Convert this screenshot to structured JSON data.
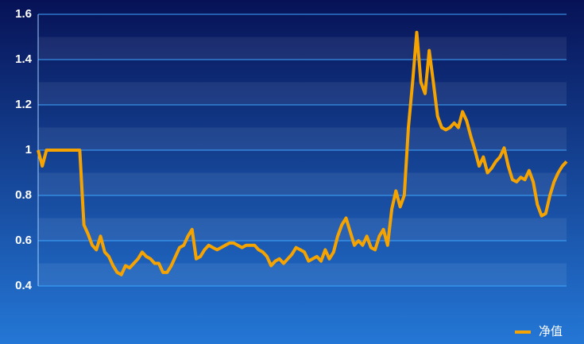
{
  "chart_data": {
    "type": "line",
    "categories": [
      null,
      null,
      null,
      null,
      null,
      null,
      null,
      null,
      null,
      null,
      null,
      null,
      null,
      null,
      null,
      null,
      null,
      null,
      null,
      null,
      null,
      null,
      null,
      null,
      null,
      null,
      null,
      null,
      null,
      null,
      null,
      null,
      null,
      null,
      null,
      null,
      null,
      null,
      null,
      null,
      null,
      null,
      null,
      null,
      null,
      null,
      null,
      null,
      null,
      null,
      null,
      null,
      null,
      null,
      null,
      null,
      null,
      null,
      null,
      null,
      null,
      null,
      null,
      null,
      null,
      null,
      null,
      null,
      null,
      null,
      null,
      null,
      null,
      null,
      null,
      null,
      null,
      null,
      null,
      null,
      null,
      null,
      null,
      null,
      null,
      null,
      null,
      null,
      null,
      null,
      null,
      null,
      null,
      null,
      null,
      null,
      null,
      null,
      null,
      null,
      null,
      null,
      null,
      null,
      null,
      null,
      null,
      null,
      null,
      null,
      null,
      null,
      null,
      null,
      null,
      null,
      null,
      null,
      null,
      null,
      null,
      null,
      null,
      null,
      null,
      null,
      null,
      null
    ],
    "series": [
      {
        "name": "净值",
        "color": "#f5a300",
        "values": [
          1.0,
          0.93,
          1.0,
          1.0,
          1.0,
          1.0,
          1.0,
          1.0,
          1.0,
          1.0,
          1.0,
          0.67,
          0.63,
          0.58,
          0.56,
          0.62,
          0.55,
          0.53,
          0.49,
          0.46,
          0.45,
          0.49,
          0.48,
          0.5,
          0.52,
          0.55,
          0.53,
          0.52,
          0.5,
          0.5,
          0.46,
          0.46,
          0.49,
          0.53,
          0.57,
          0.58,
          0.62,
          0.65,
          0.52,
          0.53,
          0.56,
          0.58,
          0.57,
          0.56,
          0.57,
          0.58,
          0.59,
          0.59,
          0.58,
          0.57,
          0.58,
          0.58,
          0.58,
          0.56,
          0.55,
          0.53,
          0.49,
          0.51,
          0.52,
          0.5,
          0.52,
          0.54,
          0.57,
          0.56,
          0.55,
          0.51,
          0.52,
          0.53,
          0.51,
          0.56,
          0.52,
          0.55,
          0.62,
          0.67,
          0.7,
          0.64,
          0.58,
          0.6,
          0.58,
          0.62,
          0.57,
          0.56,
          0.62,
          0.65,
          0.58,
          0.74,
          0.82,
          0.75,
          0.8,
          1.1,
          1.3,
          1.52,
          1.3,
          1.25,
          1.44,
          1.3,
          1.15,
          1.1,
          1.09,
          1.1,
          1.12,
          1.1,
          1.17,
          1.13,
          1.06,
          1.0,
          0.93,
          0.97,
          0.9,
          0.92,
          0.95,
          0.97,
          1.01,
          0.93,
          0.87,
          0.86,
          0.88,
          0.87,
          0.91,
          0.86,
          0.76,
          0.71,
          0.72,
          0.8,
          0.86,
          0.9,
          0.93,
          0.95
        ]
      }
    ],
    "ylim": [
      0.4,
      1.6
    ],
    "yticks": [
      0.4,
      0.6,
      0.8,
      1,
      1.2,
      1.4,
      1.6
    ],
    "grid": true,
    "legend": "bottom-right"
  }
}
